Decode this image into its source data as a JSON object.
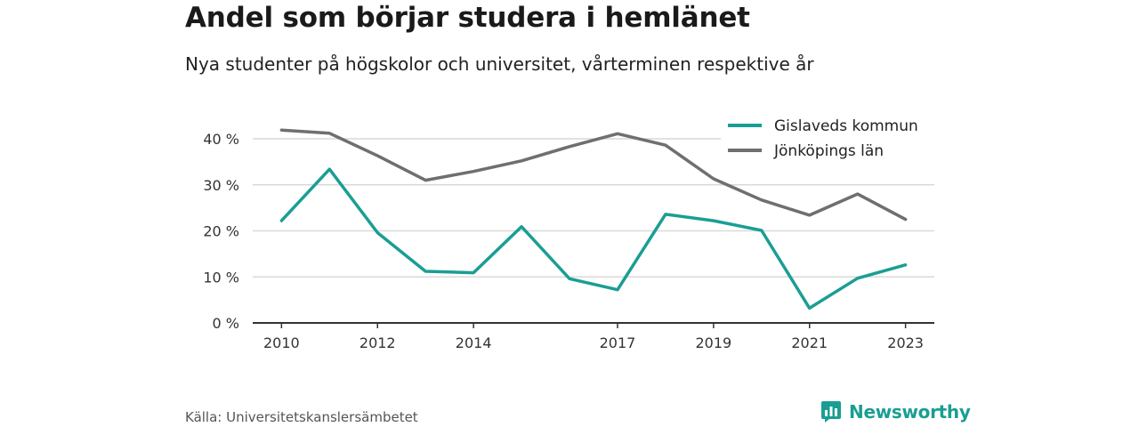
{
  "header": {
    "title": "Andel som börjar studera i hemlänet",
    "subtitle": "Nya studenter på högskolor och universitet, vårterminen respektive år"
  },
  "footer": {
    "source": "Källa: Universitetskanslersämbetet",
    "brand": "Newsworthy",
    "brand_icon": "bar-chart-logo-icon",
    "brand_color": "#1a9e93"
  },
  "chart_data": {
    "type": "line",
    "x": [
      2010,
      2011,
      2012,
      2013,
      2014,
      2015,
      2016,
      2017,
      2018,
      2019,
      2020,
      2021,
      2022,
      2023
    ],
    "xticks": [
      2010,
      2012,
      2014,
      2017,
      2019,
      2021,
      2023
    ],
    "xlim": [
      2009.4,
      2023.6
    ],
    "ylim": [
      0,
      40
    ],
    "yticks": [
      0,
      10,
      20,
      30,
      40
    ],
    "ytick_labels": [
      "0 %",
      "10 %",
      "20 %",
      "30 %",
      "40 %"
    ],
    "grid": true,
    "legend_position": "top-right",
    "series": [
      {
        "name": "Gislaveds kommun",
        "color": "#1a9e93",
        "values": [
          22.2,
          33.4,
          19.6,
          11.2,
          10.9,
          20.9,
          9.6,
          7.2,
          23.6,
          22.2,
          20.1,
          3.2,
          9.7,
          12.6
        ]
      },
      {
        "name": "Jönköpings län",
        "color": "#6e6e73",
        "values": [
          41.9,
          41.2,
          36.3,
          31.0,
          32.9,
          35.2,
          38.3,
          41.1,
          38.6,
          31.3,
          26.7,
          23.4,
          28.0,
          22.5
        ]
      }
    ]
  }
}
